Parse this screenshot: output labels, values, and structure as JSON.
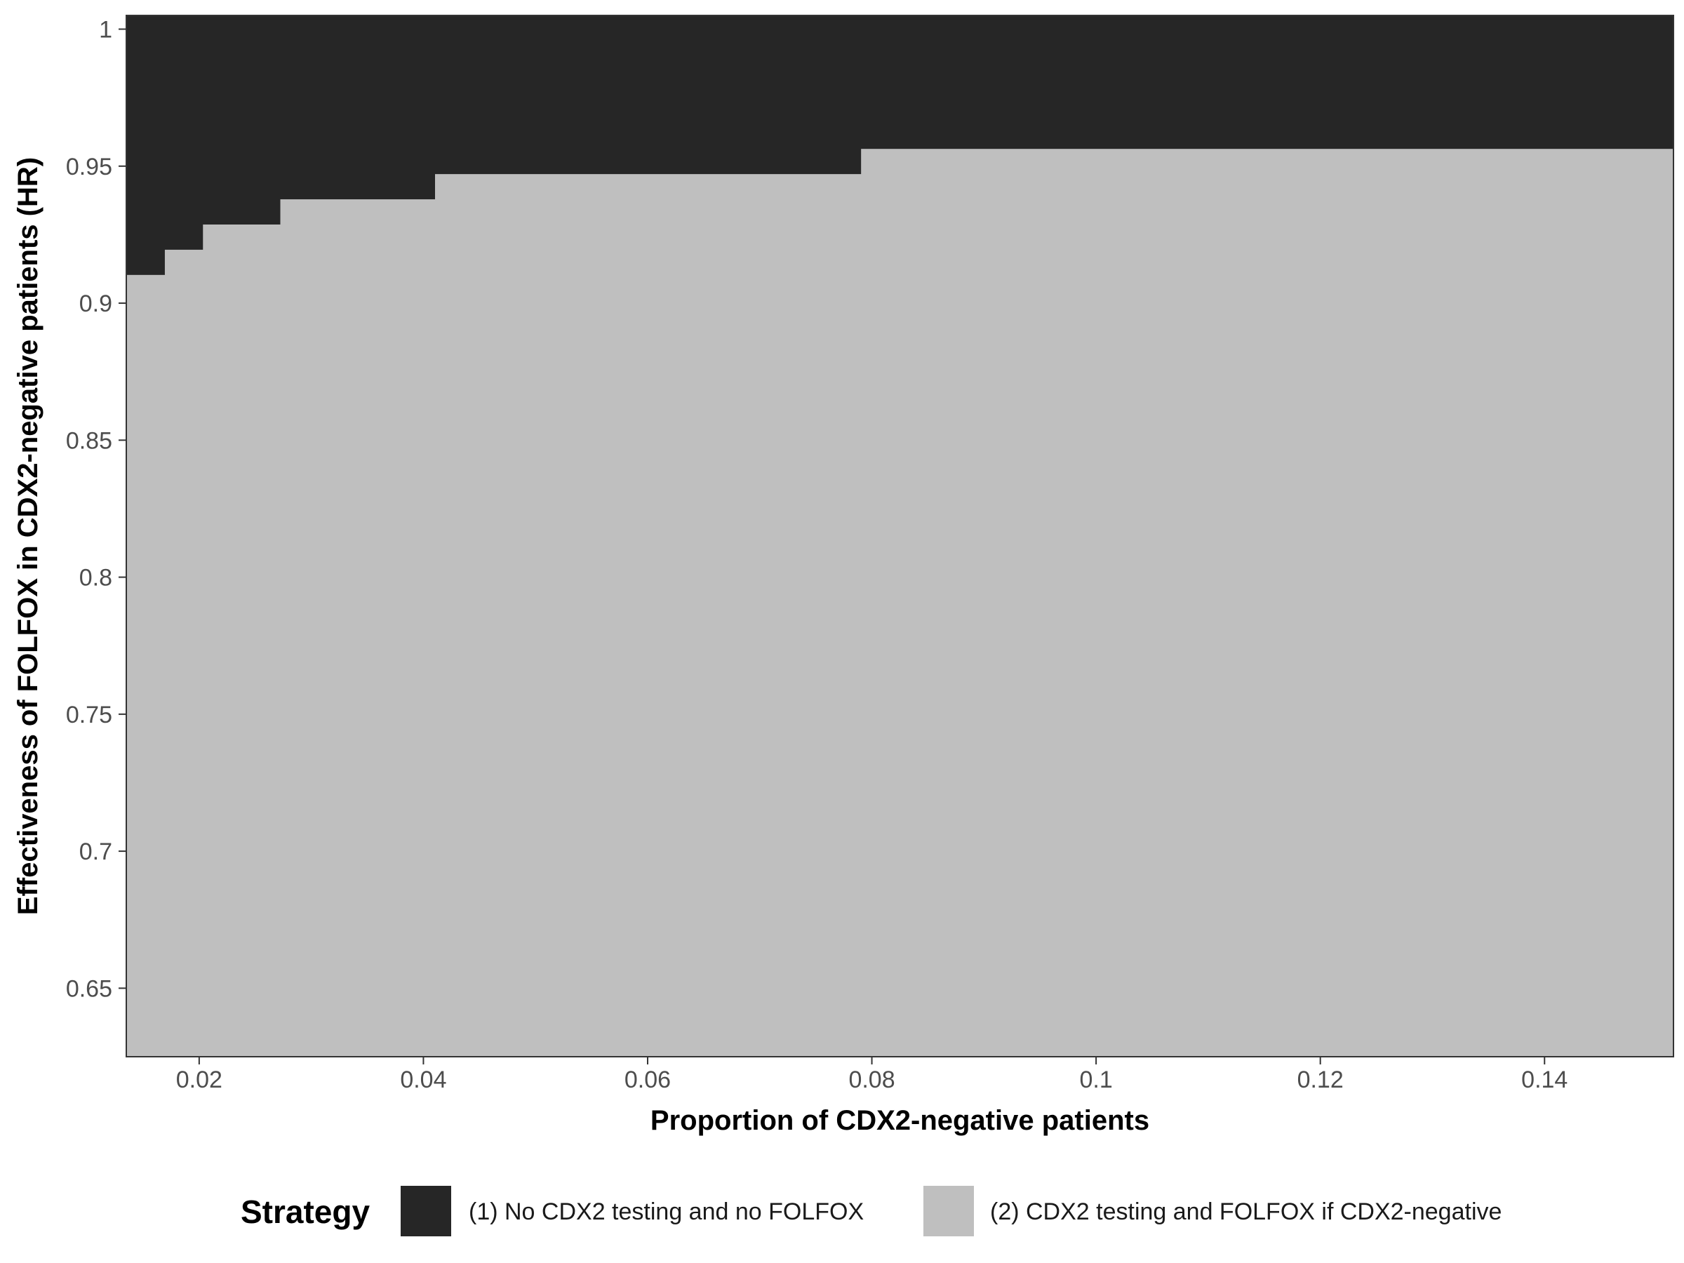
{
  "chart_data": {
    "type": "heatmap",
    "xlabel": "Proportion of CDX2-negative patients",
    "ylabel": "Effectiveness of FOLFOX in CDX2-negative patients (HR)",
    "xlim": [
      0.0135,
      0.1515
    ],
    "ylim": [
      0.625,
      1.005
    ],
    "x_ticks": [
      0.02,
      0.04,
      0.06,
      0.08,
      0.1,
      0.12,
      0.14
    ],
    "x_tick_labels": [
      "0.02",
      "0.04",
      "0.06",
      "0.08",
      "0.1",
      "0.12",
      "0.14"
    ],
    "y_ticks": [
      0.65,
      0.7,
      0.75,
      0.8,
      0.85,
      0.9,
      0.95,
      1.0
    ],
    "y_tick_labels": [
      "0.65",
      "0.7",
      "0.75",
      "0.8",
      "0.85",
      "0.9",
      "0.95",
      "1"
    ],
    "grid": false,
    "legend": {
      "title": "Strategy",
      "position": "bottom"
    },
    "categories": [
      {
        "name": "(1) No CDX2 testing and no FOLFOX",
        "color": "#262626"
      },
      {
        "name": "(2) CDX2 testing and FOLFOX if CDX2-negative",
        "color": "#bfbfbf"
      }
    ],
    "boundary_description": "HR threshold above which strategy (1) is preferred, as a step function of proportion",
    "boundary_steps": [
      {
        "x_from": 0.0135,
        "x_to": 0.0169,
        "hr_threshold": 0.9103
      },
      {
        "x_from": 0.0169,
        "x_to": 0.0203,
        "hr_threshold": 0.9195
      },
      {
        "x_from": 0.0203,
        "x_to": 0.0272,
        "hr_threshold": 0.9287
      },
      {
        "x_from": 0.0272,
        "x_to": 0.041,
        "hr_threshold": 0.9379
      },
      {
        "x_from": 0.041,
        "x_to": 0.079,
        "hr_threshold": 0.9471
      },
      {
        "x_from": 0.079,
        "x_to": 0.1515,
        "hr_threshold": 0.9563
      }
    ]
  }
}
